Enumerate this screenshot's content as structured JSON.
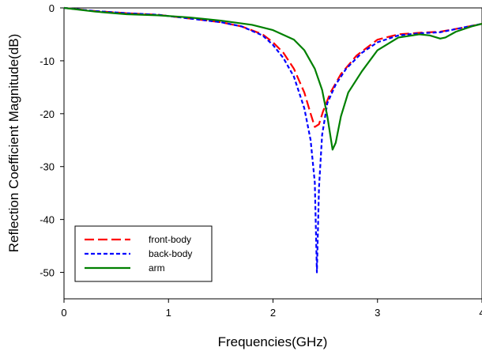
{
  "chart_data": {
    "type": "line",
    "title": "",
    "xlabel": "Frequencies(GHz)",
    "ylabel": "Reflection Coefficient Magnitude(dB)",
    "xlim": [
      0,
      4
    ],
    "ylim": [
      -55,
      0
    ],
    "x_ticks": [
      "0",
      "1",
      "2",
      "3",
      "4"
    ],
    "y_ticks": [
      "0",
      "-10",
      "-20",
      "-30",
      "-40",
      "-50"
    ],
    "grid": false,
    "legend_placement": "bottom-left",
    "series": [
      {
        "name": "front-body",
        "color": "#ff0000",
        "style": "long-dash",
        "points": [
          [
            0,
            0
          ],
          [
            0.3,
            -0.6
          ],
          [
            0.6,
            -1.0
          ],
          [
            0.9,
            -1.3
          ],
          [
            1.2,
            -2.0
          ],
          [
            1.5,
            -2.7
          ],
          [
            1.7,
            -3.5
          ],
          [
            1.9,
            -5.0
          ],
          [
            2.0,
            -6.5
          ],
          [
            2.1,
            -8.5
          ],
          [
            2.2,
            -11.5
          ],
          [
            2.3,
            -16.0
          ],
          [
            2.36,
            -20.0
          ],
          [
            2.4,
            -22.5
          ],
          [
            2.44,
            -22.0
          ],
          [
            2.48,
            -19.5
          ],
          [
            2.55,
            -16.0
          ],
          [
            2.65,
            -12.5
          ],
          [
            2.8,
            -9.0
          ],
          [
            3.0,
            -6.0
          ],
          [
            3.2,
            -5.0
          ],
          [
            3.4,
            -4.7
          ],
          [
            3.6,
            -4.5
          ],
          [
            3.8,
            -3.8
          ],
          [
            4.0,
            -3.0
          ]
        ]
      },
      {
        "name": "back-body",
        "color": "#0000ff",
        "style": "short-dash",
        "points": [
          [
            0,
            0
          ],
          [
            0.3,
            -0.6
          ],
          [
            0.6,
            -1.0
          ],
          [
            0.9,
            -1.3
          ],
          [
            1.2,
            -2.0
          ],
          [
            1.5,
            -2.7
          ],
          [
            1.7,
            -3.5
          ],
          [
            1.9,
            -5.2
          ],
          [
            2.0,
            -7.0
          ],
          [
            2.1,
            -9.5
          ],
          [
            2.2,
            -13.0
          ],
          [
            2.3,
            -19.0
          ],
          [
            2.36,
            -25.0
          ],
          [
            2.4,
            -33.0
          ],
          [
            2.42,
            -50.0
          ],
          [
            2.44,
            -34.0
          ],
          [
            2.47,
            -24.0
          ],
          [
            2.52,
            -18.0
          ],
          [
            2.6,
            -14.5
          ],
          [
            2.7,
            -11.5
          ],
          [
            2.85,
            -8.5
          ],
          [
            3.0,
            -6.5
          ],
          [
            3.2,
            -5.2
          ],
          [
            3.4,
            -4.8
          ],
          [
            3.6,
            -4.6
          ],
          [
            3.8,
            -3.8
          ],
          [
            4.0,
            -3.0
          ]
        ]
      },
      {
        "name": "arm",
        "color": "#008000",
        "style": "solid",
        "points": [
          [
            0,
            0
          ],
          [
            0.3,
            -0.7
          ],
          [
            0.6,
            -1.2
          ],
          [
            0.9,
            -1.4
          ],
          [
            1.2,
            -1.8
          ],
          [
            1.5,
            -2.4
          ],
          [
            1.8,
            -3.2
          ],
          [
            2.0,
            -4.2
          ],
          [
            2.2,
            -6.0
          ],
          [
            2.3,
            -8.0
          ],
          [
            2.4,
            -11.5
          ],
          [
            2.47,
            -15.5
          ],
          [
            2.52,
            -20.5
          ],
          [
            2.57,
            -26.8
          ],
          [
            2.6,
            -25.5
          ],
          [
            2.65,
            -20.5
          ],
          [
            2.72,
            -16.0
          ],
          [
            2.85,
            -12.0
          ],
          [
            3.0,
            -8.0
          ],
          [
            3.2,
            -5.6
          ],
          [
            3.4,
            -5.0
          ],
          [
            3.5,
            -5.2
          ],
          [
            3.6,
            -5.8
          ],
          [
            3.65,
            -5.6
          ],
          [
            3.75,
            -4.5
          ],
          [
            3.9,
            -3.5
          ],
          [
            4.0,
            -3.0
          ]
        ]
      }
    ]
  }
}
